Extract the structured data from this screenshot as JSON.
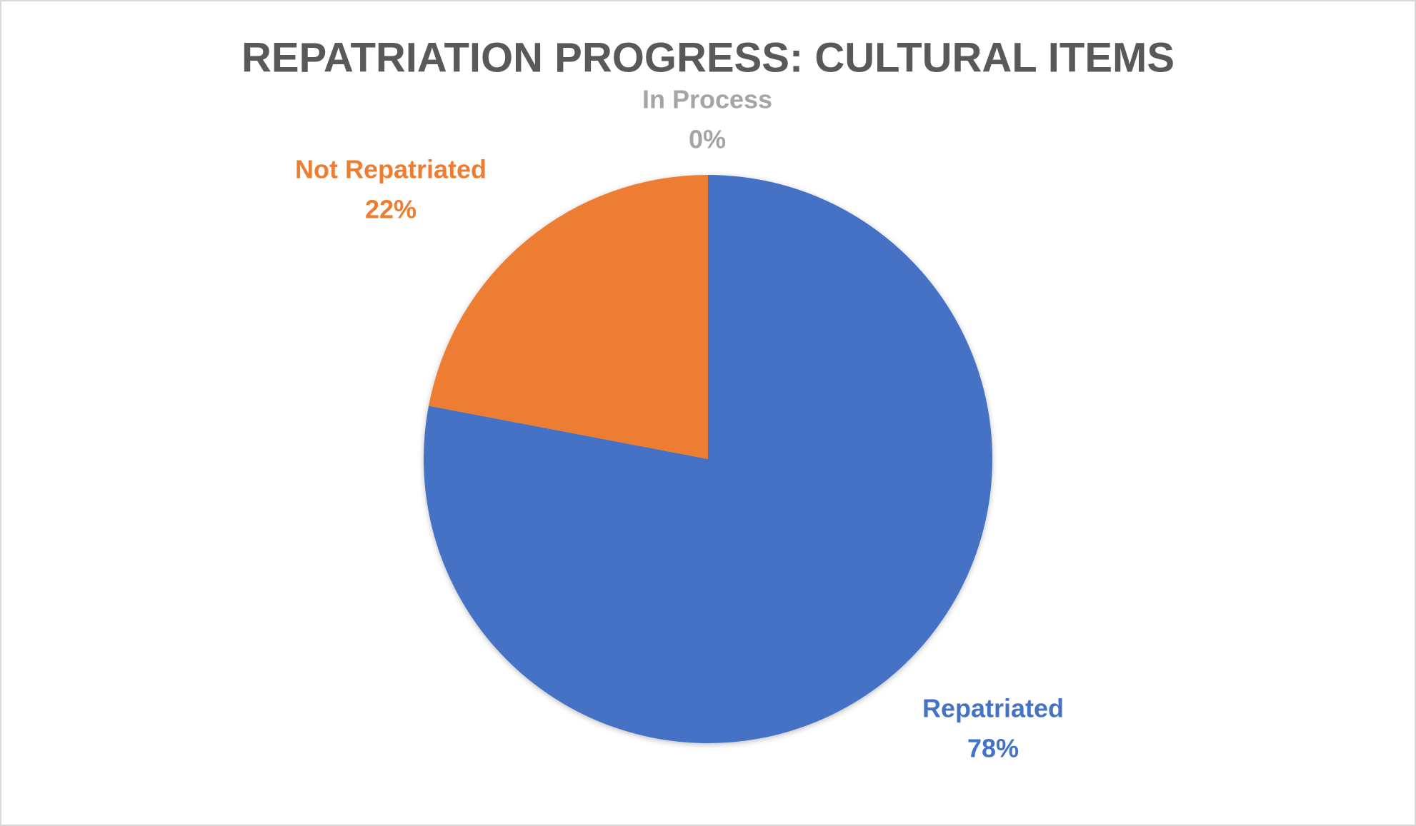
{
  "chart_data": {
    "type": "pie",
    "title": "REPATRIATION PROGRESS: CULTURAL ITEMS",
    "categories": [
      "Repatriated",
      "Not Repatriated",
      "In Process"
    ],
    "values": [
      78,
      22,
      0
    ],
    "value_labels": [
      "78%",
      "22%",
      "0%"
    ],
    "colors": [
      "#4472c4",
      "#ed7d31",
      "#a5a5a5"
    ]
  }
}
